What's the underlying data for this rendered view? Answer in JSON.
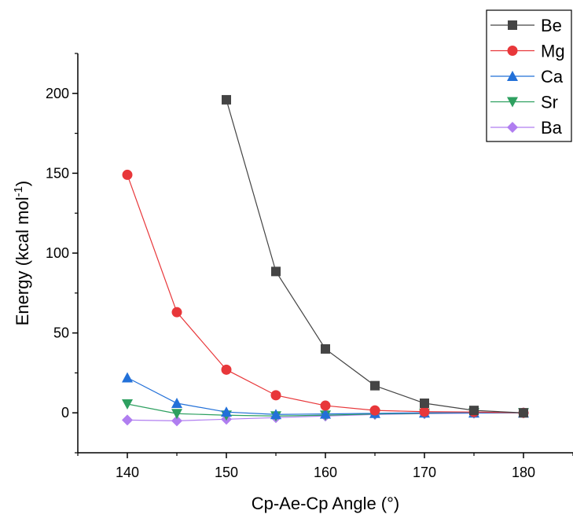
{
  "chart_data": {
    "type": "line",
    "xlabel": "Cp-Ae-Cp Angle (°)",
    "ylabel_main": "Energy (kcal mol",
    "ylabel_sup": "-1",
    "ylabel_close": ")",
    "xlim": [
      135,
      185
    ],
    "ylim": [
      -25,
      225
    ],
    "xticks": [
      140,
      150,
      160,
      170,
      180
    ],
    "xtick_labels": [
      "140",
      "150",
      "160",
      "170",
      "180"
    ],
    "yticks": [
      0,
      50,
      100,
      150,
      200
    ],
    "ytick_labels": [
      "0",
      "50",
      "100",
      "150",
      "200"
    ],
    "grid": false,
    "legend_position": "top-right",
    "series": [
      {
        "name": "Be",
        "color": "#444444",
        "marker": "square",
        "x": [
          150,
          155,
          160,
          165,
          170,
          175,
          180
        ],
        "y": [
          196,
          88.5,
          40,
          17,
          6,
          1.5,
          0
        ]
      },
      {
        "name": "Mg",
        "color": "#e8373a",
        "marker": "circle",
        "x": [
          140,
          145,
          150,
          155,
          160,
          165,
          170,
          175,
          180
        ],
        "y": [
          149,
          63,
          27,
          11,
          4.5,
          1.5,
          0.7,
          0.5,
          0
        ]
      },
      {
        "name": "Ca",
        "color": "#2270d8",
        "marker": "triangle-up",
        "x": [
          140,
          145,
          150,
          155,
          160,
          165,
          170,
          175,
          180
        ],
        "y": [
          22,
          6,
          0.5,
          -1,
          -0.7,
          -0.3,
          0,
          0,
          0
        ]
      },
      {
        "name": "Sr",
        "color": "#2ea060",
        "marker": "triangle-down",
        "x": [
          140,
          145,
          150,
          155,
          160,
          165,
          170,
          175,
          180
        ],
        "y": [
          5.5,
          -0.5,
          -1.5,
          -2,
          -1.5,
          -0.7,
          -0.3,
          0,
          0
        ]
      },
      {
        "name": "Ba",
        "color": "#b07ef0",
        "marker": "diamond",
        "x": [
          140,
          145,
          150,
          155,
          160,
          165,
          170,
          175,
          180
        ],
        "y": [
          -4.5,
          -5,
          -4,
          -3,
          -2,
          -1,
          -0.5,
          -0.2,
          0
        ]
      }
    ]
  }
}
